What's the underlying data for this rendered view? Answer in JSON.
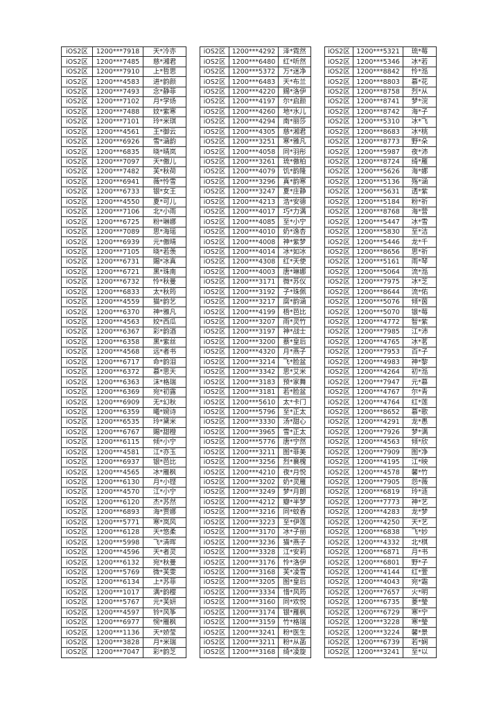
{
  "tables": [
    {
      "rows": [
        [
          "iOS2区",
          "1200***7918",
          "天*冷亦"
        ],
        [
          "iOS2区",
          "1200***7485",
          "慈*湘君"
        ],
        [
          "iOS2区",
          "1200***7910",
          "上*哲思"
        ],
        [
          "iOS2区",
          "1200***4583",
          "进*韵颜"
        ],
        [
          "iOS2区",
          "1200***7493",
          "念*静菲"
        ],
        [
          "iOS2区",
          "1200***7102",
          "月*学炀"
        ],
        [
          "iOS2区",
          "1200***7488",
          "妏*紫寒"
        ],
        [
          "iOS2区",
          "1200***7101",
          "玲*米琪"
        ],
        [
          "iOS2区",
          "1200***4561",
          "王*御云"
        ],
        [
          "iOS2区",
          "1200***6926",
          "雪*涵韵"
        ],
        [
          "iOS2区",
          "1200***6835",
          "晓*晴岚"
        ],
        [
          "iOS2区",
          "1200***7097",
          "天*傲儿"
        ],
        [
          "iOS2区",
          "1200***7482",
          "芙*秋荷"
        ],
        [
          "iOS2区",
          "1200***6941",
          "薇*怜雪"
        ],
        [
          "iOS2区",
          "1200***6733",
          "银*女王"
        ],
        [
          "iOS2区",
          "1200***4550",
          "夏*可儿"
        ],
        [
          "iOS2区",
          "1200***7106",
          "北*小雨"
        ],
        [
          "iOS2区",
          "1200***6725",
          "粉*琳娜"
        ],
        [
          "iOS2区",
          "1200***7089",
          "思*海瑶"
        ],
        [
          "iOS2区",
          "1200***6939",
          "元*傲晴"
        ],
        [
          "iOS2区",
          "1200***7105",
          "晓*若羡"
        ],
        [
          "iOS2区",
          "1200***6731",
          "賜*冰真"
        ],
        [
          "iOS2区",
          "1200***6721",
          "黑*珠南"
        ],
        [
          "iOS2区",
          "1200***6732",
          "怜*秋曼"
        ],
        [
          "iOS2区",
          "1200***6833",
          "太*秋筠"
        ],
        [
          "iOS2区",
          "1200***4559",
          "猫*韵艺"
        ],
        [
          "iOS2区",
          "1200***6370",
          "神*雅凡"
        ],
        [
          "iOS2区",
          "1200***4563",
          "姣*西瓜"
        ],
        [
          "iOS2区",
          "1200***6367",
          "彩*韵酒"
        ],
        [
          "iOS2区",
          "1200***6358",
          "黑*紫丝"
        ],
        [
          "iOS2区",
          "1200***4568",
          "远*者书"
        ],
        [
          "iOS2区",
          "1200***6717",
          "命*韵泪"
        ],
        [
          "iOS2区",
          "1200***6372",
          "慕*思天"
        ],
        [
          "iOS2区",
          "1200***6363",
          "沫*格瑞"
        ],
        [
          "iOS2区",
          "1200***6369",
          "宛*初露"
        ],
        [
          "iOS2区",
          "1200***6909",
          "无*幻秋"
        ],
        [
          "iOS2区",
          "1200***6359",
          "曦*婉诗"
        ],
        [
          "iOS2区",
          "1200***6535",
          "玲*黛米"
        ],
        [
          "iOS2区",
          "1200***6767",
          "賜*甜橙"
        ],
        [
          "iOS2区",
          "1200***6115",
          "倾*小宁"
        ],
        [
          "iOS2区",
          "1200***4581",
          "江*亦玉"
        ],
        [
          "iOS2区",
          "1200***6937",
          "银*芭比"
        ],
        [
          "iOS2区",
          "1200***4565",
          "冰*雁枫"
        ],
        [
          "iOS2区",
          "1200***6130",
          "月*小铿"
        ],
        [
          "iOS2区",
          "1200***4570",
          "江*小宁"
        ],
        [
          "iOS2区",
          "1200***6120",
          "杰*苏然"
        ],
        [
          "iOS2区",
          "1200***6893",
          "海*贾娜"
        ],
        [
          "iOS2区",
          "1200***5771",
          "寒*岚风"
        ],
        [
          "iOS2区",
          "1200***6128",
          "天*悠柔"
        ],
        [
          "iOS2区",
          "1200***5998",
          "飞*清晖"
        ],
        [
          "iOS2区",
          "1200***4596",
          "天*者灵"
        ],
        [
          "iOS2区",
          "1200***6132",
          "宛*秋曼"
        ],
        [
          "iOS2区",
          "1200***5769",
          "微*芙雯"
        ],
        [
          "iOS2区",
          "1200***6134",
          "上*苏菲"
        ],
        [
          "iOS2区",
          "1200***1017",
          "满*韵樱"
        ],
        [
          "iOS2区",
          "1200***5767",
          "元*芙妍"
        ],
        [
          "iOS2区",
          "1200***4597",
          "铃*风筝"
        ],
        [
          "iOS2区",
          "1200***6977",
          "惋*雁枫"
        ],
        [
          "iOS2区",
          "1200***1136",
          "天*娇莹"
        ],
        [
          "iOS2区",
          "1200***3828",
          "月*米瑞"
        ],
        [
          "iOS2区",
          "1200***7047",
          "彩*韵芝"
        ]
      ]
    },
    {
      "rows": [
        [
          "iOS2区",
          "1200***4292",
          "泽*霓然"
        ],
        [
          "iOS2区",
          "1200***6480",
          "红*听然"
        ],
        [
          "iOS2区",
          "1200***5372",
          "万*迷净"
        ],
        [
          "iOS2区",
          "1200***6483",
          "天*布兰"
        ],
        [
          "iOS2区",
          "1200***4220",
          "赐*洛伊"
        ],
        [
          "iOS2区",
          "1200***4197",
          "尔*启颜"
        ],
        [
          "iOS2区",
          "1200***4260",
          "地*水儿"
        ],
        [
          "iOS2区",
          "1200***4294",
          "南*丽莎"
        ],
        [
          "iOS2区",
          "1200***4305",
          "慈*湘君"
        ],
        [
          "iOS2区",
          "1200***3251",
          "寒*雅凡"
        ],
        [
          "iOS2区",
          "1200***4058",
          "同*羽彤"
        ],
        [
          "iOS2区",
          "1200***3261",
          "琉*傲柏"
        ],
        [
          "iOS2区",
          "1200***4079",
          "饥*韵隆"
        ],
        [
          "iOS2区",
          "1200***3296",
          "真*韵寒"
        ],
        [
          "iOS2区",
          "1200***3247",
          "夏*庄静"
        ],
        [
          "iOS2区",
          "1200***4213",
          "浩*安德"
        ],
        [
          "iOS2区",
          "1200***4017",
          "巧*力满"
        ],
        [
          "iOS2区",
          "1200***4085",
          "至*小宁"
        ],
        [
          "iOS2区",
          "1200***4010",
          "奶*逸杏"
        ],
        [
          "iOS2区",
          "1200***4008",
          "神*紫梦"
        ],
        [
          "iOS2区",
          "1200***4014",
          "冰*如冰"
        ],
        [
          "iOS2区",
          "1200***4308",
          "红*天使"
        ],
        [
          "iOS2区",
          "1200***4003",
          "唐*琳娜"
        ],
        [
          "iOS2区",
          "1200***3171",
          "微*苏仪"
        ],
        [
          "iOS2区",
          "1200***3192",
          "子*珠佩"
        ],
        [
          "iOS2区",
          "1200***3217",
          "腐*韵涵"
        ],
        [
          "iOS2区",
          "1200***4199",
          "梧*芭比"
        ],
        [
          "iOS2区",
          "1200***3207",
          "雨*灵竹"
        ],
        [
          "iOS2区",
          "1200***3197",
          "神*战士"
        ],
        [
          "iOS2区",
          "1200***3200",
          "蔡*皇后"
        ],
        [
          "iOS2区",
          "1200***4320",
          "月*燕子"
        ],
        [
          "iOS2区",
          "1200***3214",
          "飞*脸盆"
        ],
        [
          "iOS2区",
          "1200***3342",
          "思*艾米"
        ],
        [
          "iOS2区",
          "1200***3183",
          "预*家舞"
        ],
        [
          "iOS2区",
          "1200***3181",
          "若*脸盆"
        ],
        [
          "iOS2区",
          "1200***5610",
          "太*卡门"
        ],
        [
          "iOS2区",
          "1200***5796",
          "至*正太"
        ],
        [
          "iOS2区",
          "1200***3330",
          "汤*甜心"
        ],
        [
          "iOS2区",
          "1200***3965",
          "雪*正太"
        ],
        [
          "iOS2区",
          "1200***5776",
          "唐*宁然"
        ],
        [
          "iOS2区",
          "1200***3211",
          "图*菲美"
        ],
        [
          "iOS2区",
          "1200***3256",
          "烈*襄槐"
        ],
        [
          "iOS2区",
          "1200***4210",
          "夜*月悦"
        ],
        [
          "iOS2区",
          "1200***3202",
          "奶*灵雁"
        ],
        [
          "iOS2区",
          "1200***3249",
          "梦*月朗"
        ],
        [
          "iOS2区",
          "1200***4212",
          "瓣*半梦"
        ],
        [
          "iOS2区",
          "1200***3216",
          "同*蚊香"
        ],
        [
          "iOS2区",
          "1200***3223",
          "至*伊莲"
        ],
        [
          "iOS2区",
          "1200***3170",
          "冰*子丽"
        ],
        [
          "iOS2区",
          "1200***3236",
          "猫*燕子"
        ],
        [
          "iOS2区",
          "1200***3328",
          "江*安莉"
        ],
        [
          "iOS2区",
          "1200***3176",
          "怜*洛伊"
        ],
        [
          "iOS2区",
          "1200***3168",
          "芙*凌雪"
        ],
        [
          "iOS2区",
          "1200***3205",
          "图*皇后"
        ],
        [
          "iOS2区",
          "1200***3334",
          "惜*风筠"
        ],
        [
          "iOS2区",
          "1200***3160",
          "同*欢悦"
        ],
        [
          "iOS2区",
          "1200***3174",
          "银*雁枫"
        ],
        [
          "iOS2区",
          "1200***3159",
          "竹*格瑞"
        ],
        [
          "iOS2区",
          "1200***3241",
          "粉*医生"
        ],
        [
          "iOS2区",
          "1200***3211",
          "粉*从菡"
        ],
        [
          "iOS2区",
          "1200***3168",
          "绮*凌旋"
        ]
      ]
    },
    {
      "rows": [
        [
          "iOS2区",
          "1200***5321",
          "琉*莓"
        ],
        [
          "iOS2区",
          "1200***5346",
          "冰*若"
        ],
        [
          "iOS2区",
          "1200***8842",
          "怜*湉"
        ],
        [
          "iOS2区",
          "1200***8803",
          "慕*花"
        ],
        [
          "iOS2区",
          "1200***8758",
          "烈*从"
        ],
        [
          "iOS2区",
          "1200***8741",
          "梦*浣"
        ],
        [
          "iOS2区",
          "1200***8742",
          "海*子"
        ],
        [
          "iOS2区",
          "1200***5310",
          "冰*飞"
        ],
        [
          "iOS2区",
          "1200***8683",
          "冰*桃"
        ],
        [
          "iOS2区",
          "1200***8773",
          "野*朵"
        ],
        [
          "iOS2区",
          "1200***5987",
          "夜*沛"
        ],
        [
          "iOS2区",
          "1200***8724",
          "绮*雁"
        ],
        [
          "iOS2区",
          "1200***5626",
          "海*娜"
        ],
        [
          "iOS2区",
          "1200***5136",
          "殇*涵"
        ],
        [
          "iOS2区",
          "1200***5631",
          "透*紫"
        ],
        [
          "iOS2区",
          "1200***5184",
          "粉*祈"
        ],
        [
          "iOS2区",
          "1200***8768",
          "海*营"
        ],
        [
          "iOS2区",
          "1200***5447",
          "冰*雪"
        ],
        [
          "iOS2区",
          "1200***5830",
          "至*洁"
        ],
        [
          "iOS2区",
          "1200***5446",
          "龙*千"
        ],
        [
          "iOS2区",
          "1200***8656",
          "思*祈"
        ],
        [
          "iOS2区",
          "1200***5161",
          "雨*琴"
        ],
        [
          "iOS2区",
          "1200***5064",
          "流*湉"
        ],
        [
          "iOS2区",
          "1200***7975",
          "冰*芝"
        ],
        [
          "iOS2区",
          "1200***8644",
          "流*佑"
        ],
        [
          "iOS2区",
          "1200***5076",
          "倾*茵"
        ],
        [
          "iOS2区",
          "1200***5070",
          "银*莓"
        ],
        [
          "iOS2区",
          "1200***4772",
          "智*紫"
        ],
        [
          "iOS2区",
          "1200***7985",
          "江*沛"
        ],
        [
          "iOS2区",
          "1200***4765",
          "冰*茗"
        ],
        [
          "iOS2区",
          "1200***7953",
          "百*子"
        ],
        [
          "iOS2区",
          "1200***4983",
          "神*黎"
        ],
        [
          "iOS2区",
          "1200***4264",
          "初*湉"
        ],
        [
          "iOS2区",
          "1200***7947",
          "元*慕"
        ],
        [
          "iOS2区",
          "1200***4767",
          "尔*青"
        ],
        [
          "iOS2区",
          "1200***4764",
          "红*莲"
        ],
        [
          "iOS2区",
          "1200***8652",
          "慕*歌"
        ],
        [
          "iOS2区",
          "1200***4291",
          "龙*愚"
        ],
        [
          "iOS2区",
          "1200***7926",
          "梦*满"
        ],
        [
          "iOS2区",
          "1200***4563",
          "倾*欣"
        ],
        [
          "iOS2区",
          "1200***7909",
          "图*净"
        ],
        [
          "iOS2区",
          "1200***4195",
          "江*映"
        ],
        [
          "iOS2区",
          "1200***4578",
          "馨*竹"
        ],
        [
          "iOS2区",
          "1200***7905",
          "怨*薇"
        ],
        [
          "iOS2区",
          "1200***6819",
          "玲*涟"
        ],
        [
          "iOS2区",
          "1200***7773",
          "神*艺"
        ],
        [
          "iOS2区",
          "1200***4283",
          "龙*梦"
        ],
        [
          "iOS2区",
          "1200***4250",
          "天*艺"
        ],
        [
          "iOS2区",
          "1200***6838",
          "飞*妙"
        ],
        [
          "iOS2区",
          "1200***4332",
          "北*棋"
        ],
        [
          "iOS2区",
          "1200***6871",
          "月*书"
        ],
        [
          "iOS2区",
          "1200***6801",
          "野*子"
        ],
        [
          "iOS2区",
          "1200***4144",
          "红*萱"
        ],
        [
          "iOS2区",
          "1200***4043",
          "宛*霜"
        ],
        [
          "iOS2区",
          "1200***7657",
          "火*明"
        ],
        [
          "iOS2区",
          "1200***6735",
          "菱*瑩"
        ],
        [
          "iOS2区",
          "1200***6729",
          "寒*宁"
        ],
        [
          "iOS2区",
          "1200***3228",
          "寒*瑩"
        ],
        [
          "iOS2区",
          "1200***3224",
          "馨*景"
        ],
        [
          "iOS2区",
          "1200***6739",
          "若*娴"
        ],
        [
          "iOS2区",
          "1200***3241",
          "至*以"
        ]
      ]
    }
  ]
}
